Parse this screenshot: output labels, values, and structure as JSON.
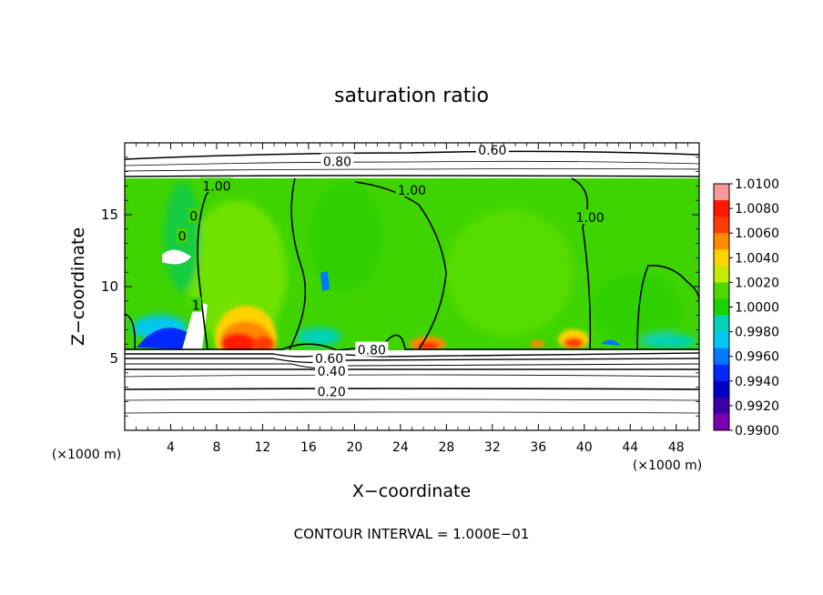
{
  "chart_data": {
    "type": "heatmap",
    "title": "saturation ratio",
    "xlabel": "X−coordinate",
    "ylabel": "Z−coordinate",
    "x_unit_left": "(×1000 m)",
    "x_unit_right": "(×1000 m)",
    "xlim": [
      0,
      50
    ],
    "ylim": [
      0,
      20
    ],
    "x_ticks": [
      4,
      8,
      12,
      16,
      20,
      24,
      28,
      32,
      36,
      40,
      44,
      48
    ],
    "y_ticks": [
      5,
      10,
      15
    ],
    "footer": "CONTOUR INTERVAL = 1.000E−01",
    "colorbar": {
      "labels": [
        "1.0100",
        "1.0080",
        "1.0060",
        "1.0040",
        "1.0020",
        "1.0000",
        "0.9980",
        "0.9960",
        "0.9940",
        "0.9920",
        "0.9900"
      ],
      "colors": [
        "#f79a9a",
        "#ff1a00",
        "#ff3d00",
        "#ff8a00",
        "#ffd200",
        "#c6ea00",
        "#4fd800",
        "#19d000",
        "#00d3b8",
        "#00c8f0",
        "#0078ff",
        "#0028ff",
        "#0000c8",
        "#3a00a8",
        "#7a00b0"
      ]
    },
    "contour_labels": [
      {
        "text": "0.60",
        "x": 32.0,
        "z": 19.5
      },
      {
        "text": "0.80",
        "x": 18.5,
        "z": 18.7
      },
      {
        "text": "1.00",
        "x": 8.0,
        "z": 17.0
      },
      {
        "text": "1.00",
        "x": 25.0,
        "z": 16.7
      },
      {
        "text": "1.00",
        "x": 40.5,
        "z": 14.8
      },
      {
        "text": "0",
        "x": 6.0,
        "z": 14.9
      },
      {
        "text": "0",
        "x": 5.0,
        "z": 13.5
      },
      {
        "text": "1",
        "x": 6.2,
        "z": 8.7
      },
      {
        "text": "0.80",
        "x": 21.5,
        "z": 5.6
      },
      {
        "text": "0.60",
        "x": 17.8,
        "z": 5.0
      },
      {
        "text": "0.40",
        "x": 18.0,
        "z": 4.1
      },
      {
        "text": "0.20",
        "x": 18.0,
        "z": 2.7
      }
    ]
  }
}
